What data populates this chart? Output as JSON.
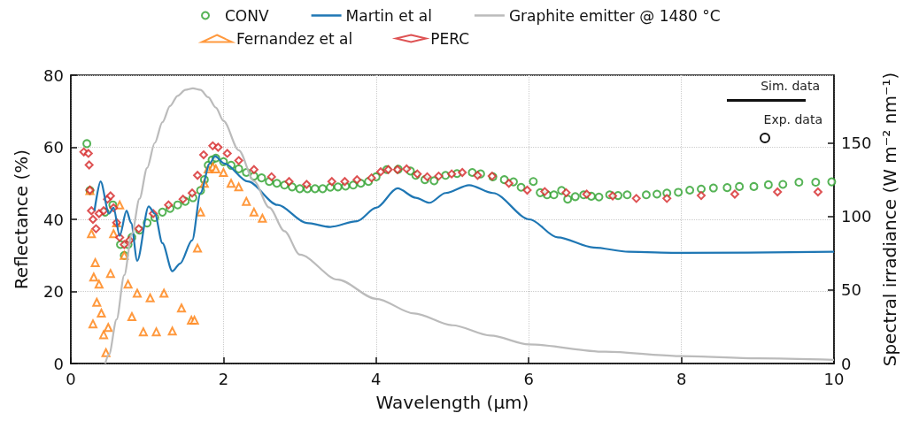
{
  "chart_data": {
    "type": "scatter",
    "xlabel": "Wavelength (µm)",
    "ylabel": "Reflectance (%)",
    "y2label": "Spectral irradiance (W m⁻² nm⁻¹)",
    "xlim": [
      0,
      10
    ],
    "xticks": [
      0,
      2,
      4,
      6,
      8,
      10
    ],
    "ylim": [
      0,
      80
    ],
    "yticks": [
      0,
      20,
      40,
      60,
      80
    ],
    "y2lim": [
      0,
      196
    ],
    "y2ticks": [
      0,
      50,
      100,
      150
    ],
    "grid": true,
    "legend": "top",
    "annotations": [
      "Sim. data",
      "Exp. data"
    ],
    "series": [
      {
        "name": "CONV",
        "marker": "circle",
        "color": "#2ca02c",
        "x": [
          0.21,
          0.25,
          0.45,
          0.55,
          0.65,
          0.7,
          0.75,
          0.8,
          0.9,
          1.0,
          1.1,
          1.2,
          1.3,
          1.4,
          1.5,
          1.6,
          1.7,
          1.75,
          1.8,
          1.85,
          1.9,
          2.0,
          2.1,
          2.2,
          2.3,
          2.4,
          2.5,
          2.6,
          2.7,
          2.8,
          2.9,
          3.0,
          3.1,
          3.2,
          3.3,
          3.4,
          3.5,
          3.6,
          3.7,
          3.8,
          3.9,
          4.0,
          4.14,
          4.29,
          4.45,
          4.52,
          4.64,
          4.76,
          4.91,
          5.06,
          5.26,
          5.37,
          5.53,
          5.68,
          5.8,
          5.9,
          6.06,
          6.15,
          6.24,
          6.33,
          6.43,
          6.51,
          6.61,
          6.72,
          6.82,
          6.92,
          7.06,
          7.17,
          7.29,
          7.54,
          7.68,
          7.81,
          7.96,
          8.11,
          8.26,
          8.42,
          8.6,
          8.76,
          8.95,
          9.14,
          9.33,
          9.54,
          9.76,
          9.97
        ],
        "values": [
          61,
          48,
          42,
          44,
          33,
          30,
          33,
          35,
          37,
          39,
          40.5,
          42,
          43,
          44,
          45,
          46,
          48,
          51,
          55,
          56.5,
          57,
          56,
          55,
          54,
          53,
          52,
          51.5,
          50.5,
          50,
          49.5,
          49,
          48.5,
          48.5,
          48.5,
          48.5,
          48.9,
          49,
          49.2,
          49.5,
          50,
          50.5,
          51.8,
          53.8,
          53.9,
          53.4,
          52.2,
          51,
          50.7,
          52.2,
          52.7,
          53,
          52.6,
          51.8,
          51,
          50.4,
          48.9,
          50.5,
          47.4,
          46.8,
          46.8,
          48,
          45.6,
          46.3,
          46.8,
          46.4,
          46.2,
          46.8,
          46.6,
          46.8,
          46.8,
          47,
          47.3,
          47.5,
          48.1,
          48.4,
          48.7,
          48.8,
          49.1,
          49.1,
          49.6,
          49.7,
          50.3,
          50.3,
          50.4
        ]
      },
      {
        "name": "Fernandez et al",
        "marker": "triangle",
        "color": "#ff7f0e",
        "x": [
          0.25,
          0.27,
          0.29,
          0.3,
          0.32,
          0.34,
          0.37,
          0.4,
          0.43,
          0.46,
          0.49,
          0.52,
          0.56,
          0.6,
          0.64,
          0.7,
          0.75,
          0.8,
          0.87,
          0.95,
          1.04,
          1.12,
          1.22,
          1.33,
          1.45,
          1.58,
          1.62,
          1.66,
          1.7,
          1.75,
          1.8,
          1.86,
          1.9,
          2.0,
          2.1,
          2.2,
          2.3,
          2.4,
          2.51
        ],
        "values": [
          48,
          36,
          11,
          24,
          28,
          17,
          22,
          14,
          8,
          3,
          10,
          25,
          36,
          39,
          44,
          30,
          22,
          13,
          19.5,
          8.8,
          18.2,
          8.8,
          19.5,
          9,
          15.4,
          12,
          12,
          32,
          42,
          50,
          54,
          54.6,
          54,
          53,
          50,
          49,
          45,
          42,
          40.3
        ]
      },
      {
        "name": "Martin et al",
        "type": "line",
        "color": "#1f77b4",
        "x": [
          0.31,
          0.39,
          0.5,
          0.56,
          0.64,
          0.73,
          0.79,
          0.87,
          1.02,
          1.1,
          1.2,
          1.33,
          1.43,
          1.59,
          1.7,
          1.82,
          1.89,
          2.01,
          2.32,
          2.71,
          3.09,
          3.4,
          3.75,
          4.0,
          4.28,
          4.52,
          4.7,
          4.91,
          5.22,
          5.53,
          6.01,
          6.38,
          6.85,
          7.31,
          8.0,
          10.0
        ],
        "values": [
          42.4,
          50.5,
          41.6,
          43.2,
          35.4,
          42.4,
          39,
          28.5,
          43.6,
          41.6,
          33.4,
          25.6,
          27.7,
          34.2,
          47.3,
          55.5,
          57.5,
          55.5,
          50.5,
          44,
          39,
          37.9,
          39.5,
          43.2,
          48.6,
          46,
          44.6,
          47.3,
          49.5,
          47.3,
          40,
          35,
          32.2,
          31,
          30.7,
          31
        ]
      },
      {
        "name": "PERC",
        "marker": "diamond",
        "color": "#d62728",
        "x": [
          0.17,
          0.23,
          0.24,
          0.25,
          0.27,
          0.29,
          0.33,
          0.37,
          0.43,
          0.48,
          0.52,
          0.56,
          0.6,
          0.64,
          0.7,
          0.77,
          0.89,
          1.08,
          1.28,
          1.47,
          1.59,
          1.66,
          1.74,
          1.86,
          1.93,
          2.05,
          2.2,
          2.4,
          2.63,
          2.86,
          3.09,
          3.42,
          3.59,
          3.75,
          3.94,
          4.06,
          4.16,
          4.28,
          4.4,
          4.54,
          4.67,
          4.82,
          4.99,
          5.13,
          5.33,
          5.52,
          5.74,
          5.98,
          6.21,
          6.49,
          6.76,
          7.1,
          7.41,
          7.81,
          8.26,
          8.7,
          9.26,
          9.79
        ],
        "values": [
          58.7,
          58.3,
          55.1,
          48.1,
          42.4,
          40,
          37.4,
          41.6,
          42.4,
          45.6,
          46.5,
          43.2,
          39.1,
          35,
          33,
          34.2,
          37.4,
          41.6,
          44,
          45.6,
          47.3,
          52.2,
          57.9,
          60.4,
          60,
          58.3,
          56.3,
          53.8,
          51.8,
          50.5,
          49.7,
          50.5,
          50.5,
          51,
          51.5,
          53.2,
          53.8,
          53.8,
          54,
          52.6,
          51.8,
          52,
          52.6,
          53,
          52.2,
          52,
          50,
          48.1,
          47.7,
          47.4,
          47,
          46.5,
          45.8,
          45.8,
          46.6,
          47,
          47.6,
          47.6
        ]
      },
      {
        "name": "Graphite emitter @ 1480 °C",
        "type": "line",
        "axis": "y2",
        "color": "#bbbbbb",
        "x": [
          0.45,
          0.5,
          0.6,
          0.7,
          0.8,
          0.9,
          1.0,
          1.1,
          1.2,
          1.3,
          1.4,
          1.5,
          1.6,
          1.7,
          1.8,
          1.9,
          2.0,
          2.2,
          2.4,
          2.6,
          2.8,
          3.0,
          3.5,
          4.0,
          4.5,
          5.0,
          5.5,
          6.0,
          7.0,
          8.0,
          9.0,
          10.0
        ],
        "values": [
          0,
          6,
          30,
          60,
          88,
          112,
          133,
          150,
          164,
          175,
          182,
          186,
          187,
          186,
          181,
          174,
          165,
          145,
          124,
          106,
          90,
          74,
          57,
          44,
          34,
          26,
          19,
          13,
          8,
          5,
          3.5,
          2.5
        ]
      }
    ]
  }
}
